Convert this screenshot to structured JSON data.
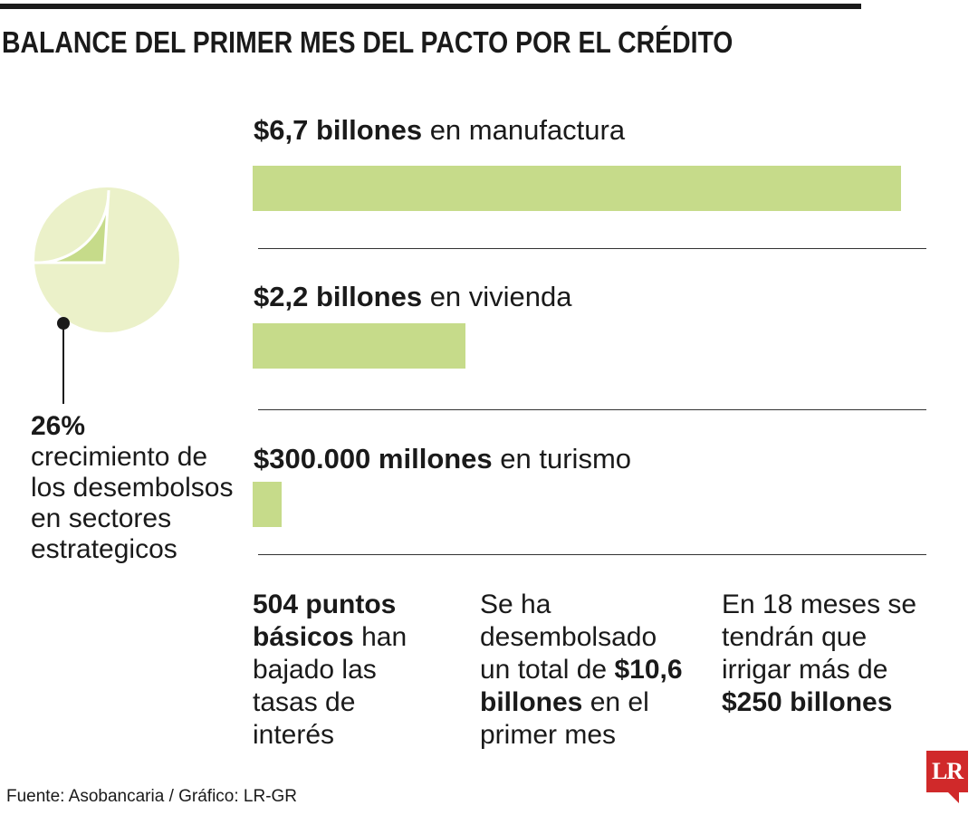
{
  "title": "BALANCE DEL PRIMER MES DEL PACTO POR EL CRÉDITO",
  "colors": {
    "bar": "#c6db8a",
    "pie_light": "#ebf1c9",
    "pie_dark": "#c6db8a",
    "logo_red": "#d0292a"
  },
  "stat": {
    "value": "26%",
    "text": "crecimiento de los desembolsos en sectores estrategicos",
    "pie_fraction": 0.26
  },
  "chart_data": {
    "type": "bar",
    "orientation": "horizontal",
    "categories": [
      "manufactura",
      "vivienda",
      "turismo"
    ],
    "values": [
      6.7,
      2.2,
      0.3
    ],
    "unit": "billones de pesos",
    "labels": [
      {
        "amount": "$6,7 billones",
        "rest": " en manufactura"
      },
      {
        "amount": "$2,2 billones",
        "rest": " en vivienda"
      },
      {
        "amount": "$300.000 millones",
        "rest": " en turismo"
      }
    ],
    "xlim": [
      0,
      6.7
    ]
  },
  "blocks": [
    {
      "bold": "504 puntos básicos",
      "rest": " han bajado las tasas de interés"
    },
    {
      "pre": "Se ha desembolsado un total de ",
      "bold": "$10,6 billones",
      "post": " en el primer mes"
    },
    {
      "pre": "En 18 meses se tendrán que irrigar más de ",
      "bold": "$250 billones"
    }
  ],
  "source": "Fuente: Asobancaria / Gráfico: LR-GR",
  "logo": "LR"
}
